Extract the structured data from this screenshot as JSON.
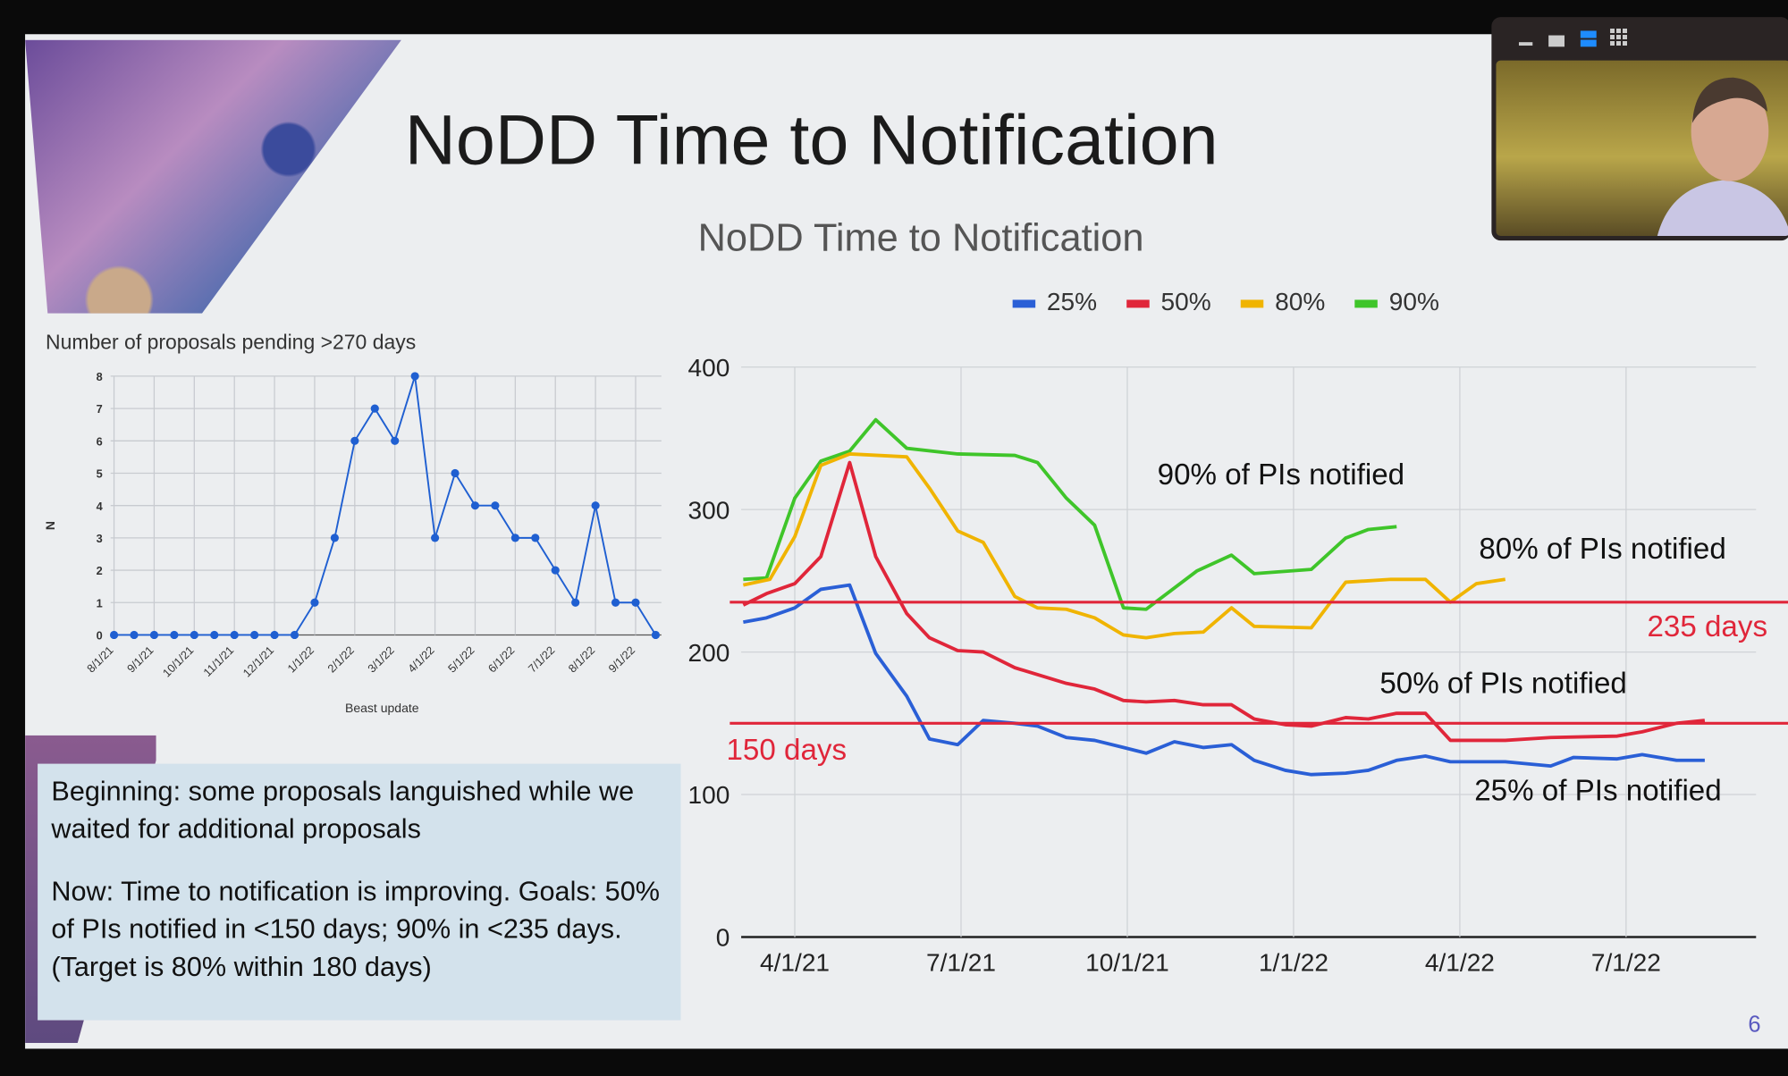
{
  "slide": {
    "title": "NoDD Time to Notification",
    "page_number": "6"
  },
  "webcam": {
    "controls": [
      "minimize-icon",
      "single-view-icon",
      "split-view-icon",
      "grid-view-icon"
    ]
  },
  "textbox": {
    "para1": "Beginning:  some proposals languished while we waited for additional proposals",
    "para2": "Now:  Time to notification is improving.  Goals: 50% of PIs notified in <150 days; 90% in <235 days.  (Target is 80% within 180 days)"
  },
  "chart_data": [
    {
      "type": "line",
      "title": "Number of proposals pending >270 days",
      "xlabel": "Beast update",
      "ylabel": "N",
      "ylim": [
        0,
        8
      ],
      "yticks": [
        "0",
        "1",
        "2",
        "3",
        "4",
        "5",
        "6",
        "7",
        "8"
      ],
      "xticks": [
        "8/1/21",
        "9/1/21",
        "10/1/21",
        "11/1/21",
        "12/1/21",
        "1/1/22",
        "2/1/22",
        "3/1/22",
        "4/1/22",
        "5/1/22",
        "6/1/22",
        "7/1/22",
        "8/1/22",
        "9/1/22"
      ],
      "points_per_tick": 2,
      "color": "#1f5fd1",
      "values": [
        0,
        0,
        0,
        0,
        0,
        0,
        0,
        0,
        0,
        0,
        1,
        3,
        6,
        7,
        6,
        8,
        3,
        5,
        4,
        4,
        3,
        3,
        2,
        1,
        4,
        1,
        1,
        0
      ]
    },
    {
      "type": "line",
      "title": "NoDD Time to Notification",
      "ylim": [
        0,
        400
      ],
      "yticks": [
        "0",
        "100",
        "200",
        "300",
        "400"
      ],
      "x_unit": "months since 4/1/21",
      "xticks": [
        {
          "label": "4/1/21",
          "x": 0
        },
        {
          "label": "7/1/21",
          "x": 3
        },
        {
          "label": "10/1/21",
          "x": 6
        },
        {
          "label": "1/1/22",
          "x": 9
        },
        {
          "label": "4/1/22",
          "x": 12
        },
        {
          "label": "7/1/22",
          "x": 15
        }
      ],
      "series": [
        {
          "name": "25%",
          "color": "#2a5fd6",
          "x": [
            -0.93,
            -0.51,
            0,
            0.47,
            0.99,
            1.46,
            2.02,
            2.43,
            2.94,
            3.4,
            3.97,
            4.38,
            4.9,
            5.41,
            5.93,
            6.34,
            6.85,
            7.37,
            7.88,
            8.29,
            8.85,
            9.32,
            9.94,
            10.35,
            10.86,
            11.38,
            11.83,
            12.82,
            13.64,
            14.05,
            14.84,
            15.29,
            15.91,
            16.42
          ],
          "y": [
            221,
            224,
            231,
            244,
            247,
            199,
            169,
            139,
            135,
            152,
            150,
            148,
            140,
            138,
            133,
            129,
            137,
            133,
            135,
            124,
            117,
            114,
            115,
            117,
            124,
            127,
            123,
            123,
            120,
            126,
            125,
            128,
            124,
            124
          ]
        },
        {
          "name": "50%",
          "color": "#e0263a",
          "x": [
            -0.93,
            -0.51,
            0,
            0.47,
            0.99,
            1.46,
            2.02,
            2.43,
            2.94,
            3.4,
            3.97,
            4.9,
            5.41,
            5.93,
            6.34,
            6.85,
            7.37,
            7.88,
            8.29,
            8.85,
            9.32,
            9.94,
            10.35,
            10.86,
            11.38,
            11.83,
            12.82,
            13.64,
            14.84,
            15.29,
            15.91,
            16.42
          ],
          "y": [
            233,
            241,
            248,
            267,
            333,
            267,
            227,
            210,
            201,
            200,
            189,
            178,
            174,
            166,
            165,
            166,
            163,
            163,
            153,
            149,
            148,
            154,
            153,
            157,
            157,
            138,
            138,
            140,
            141,
            144,
            150,
            152
          ]
        },
        {
          "name": "80%",
          "color": "#f0b400",
          "x": [
            -0.93,
            -0.45,
            0,
            0.47,
            0.99,
            2.02,
            2.43,
            2.94,
            3.4,
            3.97,
            4.38,
            4.9,
            5.41,
            5.93,
            6.34,
            6.85,
            7.37,
            7.88,
            8.29,
            9.32,
            9.94,
            10.76,
            11.38,
            11.83,
            12.3,
            12.82
          ],
          "y": [
            247,
            251,
            281,
            331,
            339,
            337,
            315,
            285,
            277,
            239,
            231,
            230,
            224,
            212,
            210,
            213,
            214,
            231,
            218,
            217,
            249,
            251,
            251,
            235,
            248,
            251
          ]
        },
        {
          "name": "90%",
          "color": "#3fc52a",
          "x": [
            -0.93,
            -0.51,
            0,
            0.47,
            0.99,
            1.46,
            2.02,
            2.94,
            3.97,
            4.38,
            4.9,
            5.41,
            5.93,
            6.34,
            7.26,
            7.88,
            8.29,
            9.32,
            9.94,
            10.35,
            10.86
          ],
          "y": [
            251,
            252,
            308,
            334,
            341,
            363,
            343,
            339,
            338,
            333,
            308,
            289,
            231,
            230,
            257,
            268,
            255,
            258,
            280,
            286,
            288
          ]
        }
      ],
      "reference_lines": [
        {
          "value": 235,
          "label": "235 days",
          "color": "#e0263a"
        },
        {
          "value": 150,
          "label": "150 days",
          "color": "#e0263a"
        }
      ],
      "annotations": [
        "90% of PIs notified",
        "80% of PIs notified",
        "50% of PIs notified",
        "25% of PIs notified"
      ],
      "legend": "top"
    }
  ]
}
